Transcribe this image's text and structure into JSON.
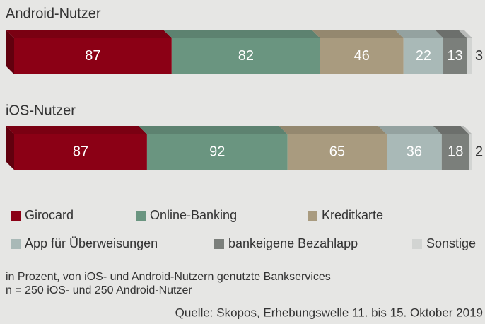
{
  "chart_data": {
    "type": "bar",
    "orientation": "horizontal",
    "stacked": true,
    "categories": [
      "Android-Nutzer",
      "iOS-Nutzer"
    ],
    "series": [
      {
        "name": "Girocard",
        "color": "#8b0015",
        "values": [
          87,
          87
        ]
      },
      {
        "name": "Online-Banking",
        "color": "#6a9580",
        "values": [
          82,
          92
        ]
      },
      {
        "name": "Kreditkarte",
        "color": "#a99b7f",
        "values": [
          46,
          65
        ]
      },
      {
        "name": "App für Überweisungen",
        "color": "#a9b9b7",
        "values": [
          22,
          36
        ]
      },
      {
        "name": "bankeigene Bezahlapp",
        "color": "#7b7f7b",
        "values": [
          13,
          18
        ]
      },
      {
        "name": "Sonstige",
        "color": "#d2d4d2",
        "values": [
          3,
          2
        ]
      }
    ],
    "notes": [
      "in Prozent, von iOS- und Android-Nutzern genutzte Bankservices",
      "n = 250 iOS- und 250 Android-Nutzer"
    ],
    "source": "Quelle: Skopos, Erhebungswelle 11. bis 15. Oktober 2019"
  }
}
